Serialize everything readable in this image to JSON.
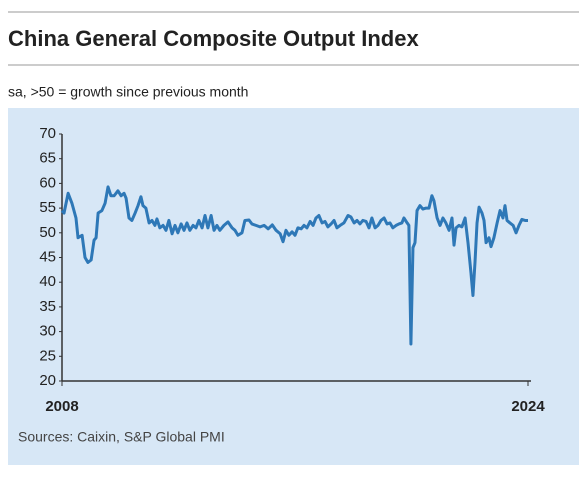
{
  "chart_data": {
    "type": "line",
    "title": "China General Composite Output Index",
    "subtitle": "sa, >50 = growth since previous month",
    "source": "Sources: Caixin, S&P Global PMI",
    "x": [
      2008.0,
      2008.07,
      2008.21,
      2008.34,
      2008.48,
      2008.55,
      2008.69,
      2008.79,
      2008.89,
      2009.0,
      2009.1,
      2009.17,
      2009.24,
      2009.37,
      2009.48,
      2009.58,
      2009.68,
      2009.79,
      2009.92,
      2010.03,
      2010.13,
      2010.2,
      2010.3,
      2010.4,
      2010.51,
      2010.61,
      2010.71,
      2010.78,
      2010.88,
      2010.99,
      2011.09,
      2011.19,
      2011.26,
      2011.36,
      2011.47,
      2011.57,
      2011.67,
      2011.78,
      2011.88,
      2011.98,
      2012.09,
      2012.19,
      2012.29,
      2012.39,
      2012.5,
      2012.6,
      2012.7,
      2012.81,
      2012.91,
      2013.01,
      2013.12,
      2013.22,
      2013.32,
      2013.42,
      2013.56,
      2013.7,
      2013.84,
      2013.94,
      2014.04,
      2014.18,
      2014.28,
      2014.42,
      2014.52,
      2014.66,
      2014.8,
      2014.94,
      2015.08,
      2015.22,
      2015.35,
      2015.49,
      2015.59,
      2015.69,
      2015.79,
      2015.9,
      2016.0,
      2016.1,
      2016.21,
      2016.31,
      2016.41,
      2016.52,
      2016.62,
      2016.72,
      2016.82,
      2016.93,
      2017.03,
      2017.13,
      2017.24,
      2017.34,
      2017.44,
      2017.55,
      2017.68,
      2017.82,
      2017.92,
      2018.03,
      2018.13,
      2018.23,
      2018.33,
      2018.44,
      2018.54,
      2018.64,
      2018.75,
      2018.85,
      2018.95,
      2019.06,
      2019.16,
      2019.26,
      2019.36,
      2019.47,
      2019.57,
      2019.67,
      2019.74,
      2019.85,
      2019.91,
      2019.98,
      2020.05,
      2020.12,
      2020.19,
      2020.29,
      2020.39,
      2020.5,
      2020.6,
      2020.7,
      2020.77,
      2020.88,
      2020.98,
      2021.08,
      2021.18,
      2021.29,
      2021.39,
      2021.46,
      2021.53,
      2021.63,
      2021.73,
      2021.84,
      2021.94,
      2022.04,
      2022.11,
      2022.18,
      2022.25,
      2022.32,
      2022.42,
      2022.49,
      2022.56,
      2022.66,
      2022.73,
      2022.83,
      2022.94,
      2023.04,
      2023.14,
      2023.21,
      2023.28,
      2023.38,
      2023.49,
      2023.59,
      2023.69,
      2023.79,
      2023.9,
      2024.0
    ],
    "series": [
      {
        "color": "#2e78b7",
        "values": [
          54.5,
          54,
          58,
          56,
          53,
          49,
          49.5,
          45,
          44,
          44.5,
          48.5,
          49,
          54,
          54.5,
          56,
          59.3,
          57.5,
          57.5,
          58.5,
          57.5,
          58,
          57,
          53,
          52.5,
          54,
          55.5,
          57.3,
          55.5,
          55,
          52,
          52.5,
          51.5,
          52.8,
          51,
          51.5,
          50.5,
          52.5,
          49.8,
          51.5,
          50,
          51.8,
          50.5,
          52,
          50.5,
          51.5,
          51,
          52.5,
          51,
          53.5,
          51,
          53.5,
          50.5,
          51.5,
          50.5,
          51.5,
          52.2,
          51,
          50.5,
          49.5,
          50,
          52.5,
          52.6,
          51.8,
          51.5,
          51.2,
          51.5,
          50.8,
          51.6,
          50.5,
          49.8,
          48.2,
          50.5,
          49.5,
          50.2,
          49.5,
          51,
          50.8,
          51.5,
          51,
          52.3,
          51.5,
          53,
          53.5,
          52,
          52.3,
          51.2,
          51.8,
          52.5,
          51,
          51.5,
          52,
          53.5,
          53.2,
          52,
          52.5,
          51.8,
          52.5,
          52.3,
          51,
          53,
          51,
          51.5,
          52.5,
          53,
          51.8,
          52,
          51,
          51.5,
          51.8,
          52,
          53,
          52,
          51.5,
          27.5,
          47,
          48,
          54.5,
          55.5,
          54.8,
          55,
          55,
          57.5,
          56.5,
          53,
          51.5,
          53,
          52,
          50.5,
          53,
          47.5,
          51,
          51.5,
          51.2,
          53,
          48,
          42,
          37.3,
          44,
          52,
          55.2,
          54,
          52.5,
          48,
          49,
          47.2,
          49,
          52,
          54.5,
          53,
          55.5,
          52.5,
          52,
          51.5,
          50,
          51.5,
          52.7,
          52.5,
          52.5
        ]
      }
    ],
    "xlim": [
      2008,
      2024
    ],
    "xticks": [
      2008,
      2024
    ],
    "ylim": [
      20,
      70
    ],
    "yticks": [
      20,
      25,
      30,
      35,
      40,
      45,
      50,
      55,
      60,
      65,
      70
    ],
    "grid": false
  }
}
